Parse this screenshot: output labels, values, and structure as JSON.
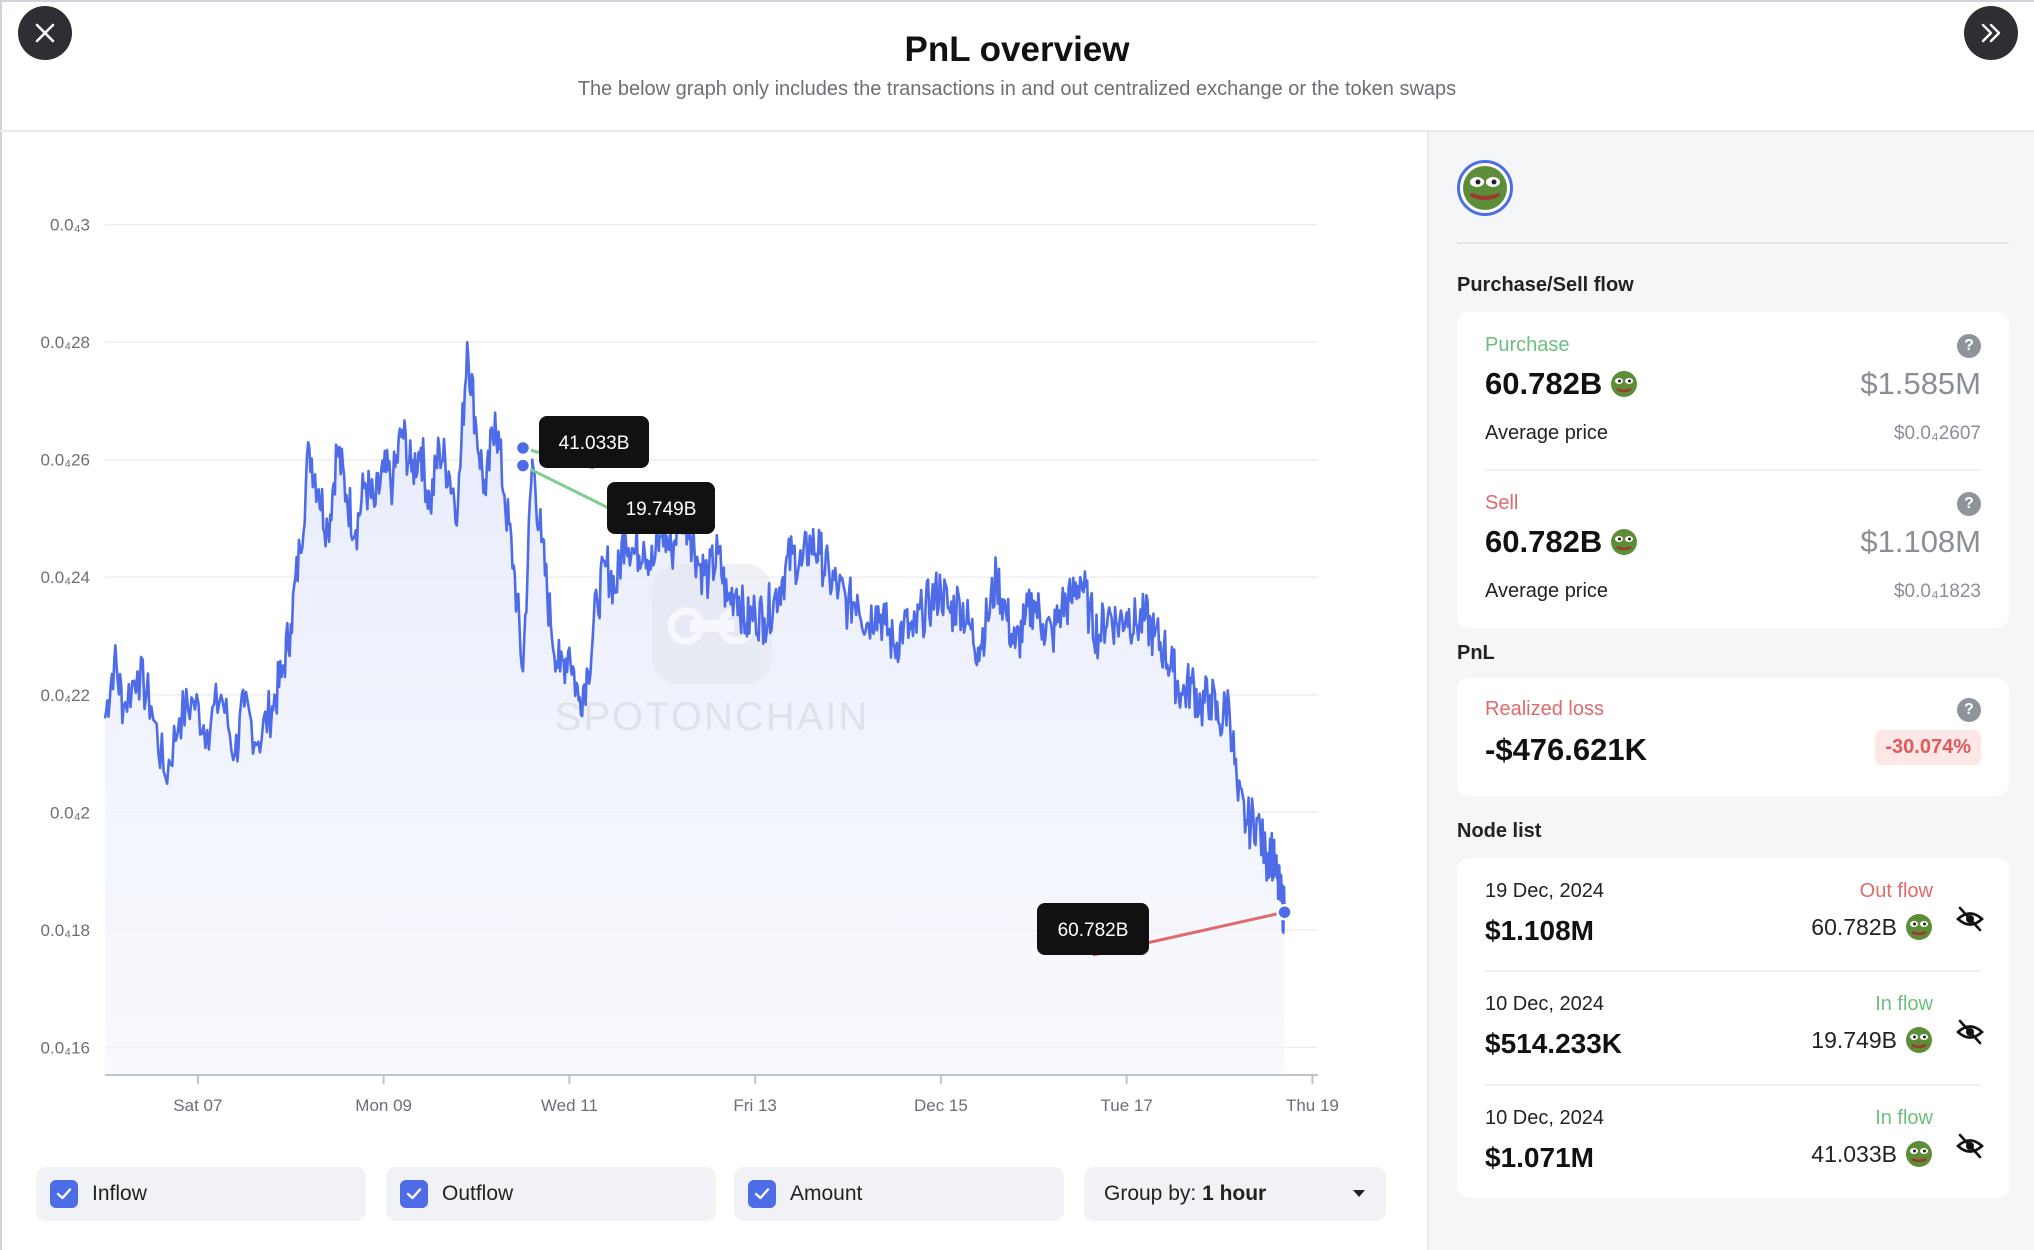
{
  "header": {
    "title": "PnL overview",
    "subtitle": "The below graph only includes the transactions in and out centralized exchange or the token swaps"
  },
  "watermark": "SPOTONCHAIN",
  "colors": {
    "accent": "#4f6ce8",
    "inflow": "#7ccf8e",
    "outflow": "#e06a6a",
    "line": "#4f6ce8"
  },
  "chart_data": {
    "type": "line",
    "y_tick_labels": [
      "0.0₄3",
      "0.0₄28",
      "0.0₄26",
      "0.0₄24",
      "0.0₄22",
      "0.0₄2",
      "0.0₄18",
      "0.0₄16"
    ],
    "y_tick_values": [
      3e-05,
      2.8e-05,
      2.6e-05,
      2.4e-05,
      2.2e-05,
      2e-05,
      1.8e-05,
      1.6e-05
    ],
    "ylim": [
      1.57e-05,
      3.03e-05
    ],
    "x_tick_labels": [
      "Sat 07",
      "Mon 09",
      "Wed 11",
      "Fri 13",
      "Dec 15",
      "Tue 17",
      "Thu 19"
    ],
    "x_tick_days": [
      1,
      3,
      5,
      7,
      9,
      11,
      13
    ],
    "xlim_days": [
      0,
      13.06
    ],
    "x_unit": "day of chart (Sat 07 = 1)",
    "series": [
      {
        "points": [
          [
            0.0,
            2.16e-05
          ],
          [
            0.1,
            2.26e-05
          ],
          [
            0.2,
            2.18e-05
          ],
          [
            0.35,
            2.24e-05
          ],
          [
            0.5,
            2.18e-05
          ],
          [
            0.65,
            2.06e-05
          ],
          [
            0.8,
            2.16e-05
          ],
          [
            0.95,
            2.19e-05
          ],
          [
            1.1,
            2.14e-05
          ],
          [
            1.25,
            2.2e-05
          ],
          [
            1.4,
            2.1e-05
          ],
          [
            1.5,
            2.18e-05
          ],
          [
            1.65,
            2.12e-05
          ],
          [
            1.8,
            2.18e-05
          ],
          [
            1.9,
            2.23e-05
          ],
          [
            2.0,
            2.32e-05
          ],
          [
            2.1,
            2.45e-05
          ],
          [
            2.2,
            2.62e-05
          ],
          [
            2.3,
            2.55e-05
          ],
          [
            2.4,
            2.48e-05
          ],
          [
            2.5,
            2.62e-05
          ],
          [
            2.6,
            2.54e-05
          ],
          [
            2.7,
            2.48e-05
          ],
          [
            2.8,
            2.56e-05
          ],
          [
            2.9,
            2.52e-05
          ],
          [
            3.0,
            2.58e-05
          ],
          [
            3.1,
            2.56e-05
          ],
          [
            3.2,
            2.65e-05
          ],
          [
            3.3,
            2.58e-05
          ],
          [
            3.4,
            2.62e-05
          ],
          [
            3.5,
            2.52e-05
          ],
          [
            3.6,
            2.62e-05
          ],
          [
            3.7,
            2.58e-05
          ],
          [
            3.8,
            2.52e-05
          ],
          [
            3.9,
            2.8e-05
          ],
          [
            4.0,
            2.65e-05
          ],
          [
            4.1,
            2.54e-05
          ],
          [
            4.2,
            2.68e-05
          ],
          [
            4.3,
            2.54e-05
          ],
          [
            4.4,
            2.42e-05
          ],
          [
            4.5,
            2.24e-05
          ],
          [
            4.6,
            2.6e-05
          ],
          [
            4.7,
            2.46e-05
          ],
          [
            4.8,
            2.32e-05
          ],
          [
            4.9,
            2.24e-05
          ],
          [
            5.0,
            2.28e-05
          ],
          [
            5.1,
            2.19e-05
          ],
          [
            5.2,
            2.24e-05
          ],
          [
            5.3,
            2.36e-05
          ],
          [
            5.4,
            2.42e-05
          ],
          [
            5.5,
            2.38e-05
          ],
          [
            5.6,
            2.48e-05
          ],
          [
            5.7,
            2.44e-05
          ],
          [
            5.8,
            2.46e-05
          ],
          [
            5.9,
            2.42e-05
          ],
          [
            6.0,
            2.48e-05
          ],
          [
            6.1,
            2.44e-05
          ],
          [
            6.2,
            2.52e-05
          ],
          [
            6.3,
            2.48e-05
          ],
          [
            6.4,
            2.42e-05
          ],
          [
            6.5,
            2.4e-05
          ],
          [
            6.6,
            2.44e-05
          ],
          [
            6.7,
            2.36e-05
          ],
          [
            6.8,
            2.38e-05
          ],
          [
            6.9,
            2.32e-05
          ],
          [
            7.0,
            2.34e-05
          ],
          [
            7.1,
            2.33e-05
          ],
          [
            7.2,
            2.36e-05
          ],
          [
            7.3,
            2.4e-05
          ],
          [
            7.4,
            2.44e-05
          ],
          [
            7.5,
            2.42e-05
          ],
          [
            7.6,
            2.46e-05
          ],
          [
            7.7,
            2.44e-05
          ],
          [
            7.8,
            2.4e-05
          ],
          [
            7.9,
            2.38e-05
          ],
          [
            8.0,
            2.35e-05
          ],
          [
            8.1,
            2.37e-05
          ],
          [
            8.2,
            2.32e-05
          ],
          [
            8.3,
            2.35e-05
          ],
          [
            8.4,
            2.32e-05
          ],
          [
            8.5,
            2.28e-05
          ],
          [
            8.6,
            2.32e-05
          ],
          [
            8.7,
            2.3e-05
          ],
          [
            8.8,
            2.34e-05
          ],
          [
            8.9,
            2.36e-05
          ],
          [
            9.0,
            2.38e-05
          ],
          [
            9.1,
            2.34e-05
          ],
          [
            9.2,
            2.36e-05
          ],
          [
            9.3,
            2.32e-05
          ],
          [
            9.4,
            2.28e-05
          ],
          [
            9.5,
            2.33e-05
          ],
          [
            9.6,
            2.4e-05
          ],
          [
            9.7,
            2.34e-05
          ],
          [
            9.8,
            2.28e-05
          ],
          [
            9.9,
            2.32e-05
          ],
          [
            10.0,
            2.36e-05
          ],
          [
            10.1,
            2.32e-05
          ],
          [
            10.2,
            2.3e-05
          ],
          [
            10.3,
            2.35e-05
          ],
          [
            10.4,
            2.36e-05
          ],
          [
            10.5,
            2.4e-05
          ],
          [
            10.6,
            2.34e-05
          ],
          [
            10.7,
            2.3e-05
          ],
          [
            10.8,
            2.34e-05
          ],
          [
            10.9,
            2.32e-05
          ],
          [
            11.0,
            2.34e-05
          ],
          [
            11.1,
            2.32e-05
          ],
          [
            11.2,
            2.33e-05
          ],
          [
            11.3,
            2.3e-05
          ],
          [
            11.4,
            2.28e-05
          ],
          [
            11.5,
            2.24e-05
          ],
          [
            11.6,
            2.2e-05
          ],
          [
            11.7,
            2.22e-05
          ],
          [
            11.8,
            2.18e-05
          ],
          [
            11.9,
            2.2e-05
          ],
          [
            12.0,
            2.15e-05
          ],
          [
            12.1,
            2.19e-05
          ],
          [
            12.2,
            2.02e-05
          ],
          [
            12.3,
            1.98e-05
          ],
          [
            12.4,
            1.99e-05
          ],
          [
            12.5,
            1.92e-05
          ],
          [
            12.55,
            1.94e-05
          ],
          [
            12.6,
            1.9e-05
          ],
          [
            12.65,
            1.86e-05
          ],
          [
            12.7,
            1.83e-05
          ]
        ]
      }
    ],
    "annotations": [
      {
        "label": "41.033B",
        "x": 4.5,
        "y": 2.62e-05,
        "flow": "inflow"
      },
      {
        "label": "19.749B",
        "x": 4.5,
        "y": 2.59e-05,
        "flow": "inflow"
      },
      {
        "label": "60.782B",
        "x": 12.7,
        "y": 1.83e-05,
        "flow": "outflow"
      }
    ]
  },
  "controls": {
    "inflow_label": "Inflow",
    "outflow_label": "Outflow",
    "amount_label": "Amount",
    "group_label": "Group by:",
    "group_value": "1 hour"
  },
  "panel": {
    "purchase_sell_title": "Purchase/Sell flow",
    "purchase": {
      "label": "Purchase",
      "amount": "60.782B",
      "usd": "$1.585M",
      "avg_label": "Average price",
      "avg_price": "$0.0₄2607"
    },
    "sell": {
      "label": "Sell",
      "amount": "60.782B",
      "usd": "$1.108M",
      "avg_label": "Average price",
      "avg_price": "$0.0₄1823"
    },
    "pnl_title": "PnL",
    "pnl": {
      "label": "Realized loss",
      "value": "-$476.621K",
      "percent": "-30.074%"
    },
    "node_list_title": "Node list",
    "nodes": [
      {
        "date": "19 Dec, 2024",
        "usd": "$1.108M",
        "flow": "Out flow",
        "amount": "60.782B"
      },
      {
        "date": "10 Dec, 2024",
        "usd": "$514.233K",
        "flow": "In flow",
        "amount": "19.749B"
      },
      {
        "date": "10 Dec, 2024",
        "usd": "$1.071M",
        "flow": "In flow",
        "amount": "41.033B"
      }
    ]
  }
}
